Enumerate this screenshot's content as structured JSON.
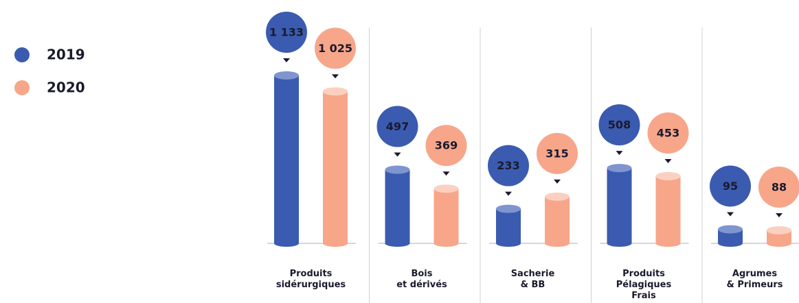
{
  "chart_data": {
    "type": "bar",
    "categories": [
      "Produits\nsidérurgiques",
      "Bois\net dérivés",
      "Sacherie\n& BB",
      "Produits\nPélagiques\nFrais",
      "Agrumes\n& Primeurs"
    ],
    "series": [
      {
        "name": "2019",
        "color": "#3a5bb0",
        "values": [
          1133,
          497,
          233,
          508,
          95
        ],
        "value_labels": [
          "1 133",
          "497",
          "233",
          "508",
          "95"
        ]
      },
      {
        "name": "2020",
        "color": "#f7a68a",
        "values": [
          1025,
          369,
          315,
          453,
          88
        ],
        "value_labels": [
          "1 025",
          "369",
          "315",
          "453",
          "88"
        ]
      }
    ],
    "legend": "top-left"
  }
}
